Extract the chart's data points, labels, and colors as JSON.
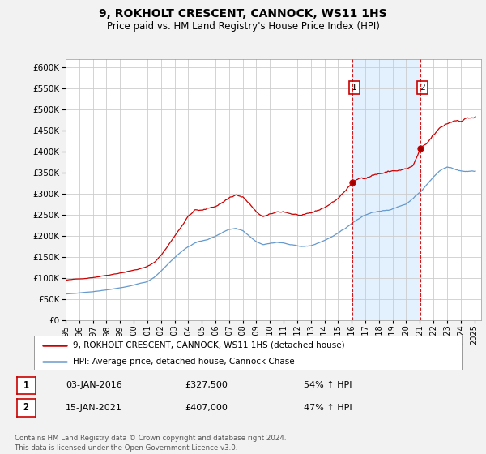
{
  "title": "9, ROKHOLT CRESCENT, CANNOCK, WS11 1HS",
  "subtitle": "Price paid vs. HM Land Registry's House Price Index (HPI)",
  "red_label": "9, ROKHOLT CRESCENT, CANNOCK, WS11 1HS (detached house)",
  "blue_label": "HPI: Average price, detached house, Cannock Chase",
  "annotation1_label": "1",
  "annotation1_date": "03-JAN-2016",
  "annotation1_price": "£327,500",
  "annotation1_hpi": "54% ↑ HPI",
  "annotation1_year": 2016.04,
  "annotation1_value": 327500,
  "annotation2_label": "2",
  "annotation2_date": "15-JAN-2021",
  "annotation2_price": "£407,000",
  "annotation2_hpi": "47% ↑ HPI",
  "annotation2_year": 2021.04,
  "annotation2_value": 407000,
  "ylim": [
    0,
    620000
  ],
  "yticks": [
    0,
    50000,
    100000,
    150000,
    200000,
    250000,
    300000,
    350000,
    400000,
    450000,
    500000,
    550000,
    600000
  ],
  "xlim_start": 1995.0,
  "xlim_end": 2025.5,
  "background_color": "#f2f2f2",
  "plot_bg_color": "#ffffff",
  "red_color": "#cc0000",
  "blue_color": "#6699cc",
  "shade_color": "#ddeeff",
  "grid_color": "#cccccc",
  "footer_text": "Contains HM Land Registry data © Crown copyright and database right 2024.\nThis data is licensed under the Open Government Licence v3.0."
}
